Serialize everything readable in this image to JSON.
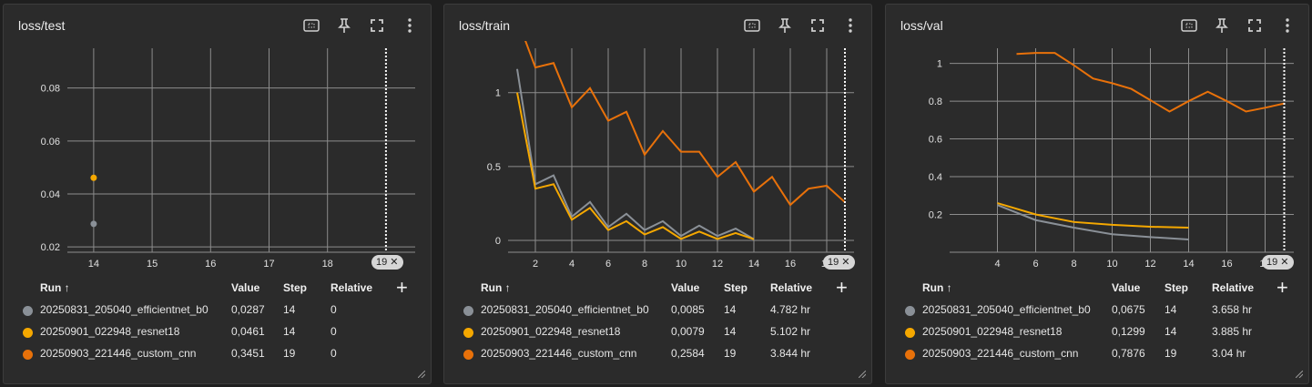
{
  "colors": {
    "efficientnet": "#8a9097",
    "resnet": "#f5a800",
    "custom_cnn": "#e8710a",
    "grid": "#8c8c8c",
    "cursor_line": "#ffffff"
  },
  "table_headers": {
    "run": "Run ↑",
    "value": "Value",
    "step": "Step",
    "relative": "Relative"
  },
  "cards": [
    {
      "title": "loss/test",
      "rows": [
        {
          "run": "20250831_205040_efficientnet_b0",
          "value": "0,0287",
          "step": "14",
          "relative": "0"
        },
        {
          "run": "20250901_022948_resnet18",
          "value": "0,0461",
          "step": "14",
          "relative": "0"
        },
        {
          "run": "20250903_221446_custom_cnn",
          "value": "0,3451",
          "step": "19",
          "relative": "0"
        }
      ]
    },
    {
      "title": "loss/train",
      "rows": [
        {
          "run": "20250831_205040_efficientnet_b0",
          "value": "0,0085",
          "step": "14",
          "relative": "4.782 hr"
        },
        {
          "run": "20250901_022948_resnet18",
          "value": "0,0079",
          "step": "14",
          "relative": "5.102 hr"
        },
        {
          "run": "20250903_221446_custom_cnn",
          "value": "0,2584",
          "step": "19",
          "relative": "3.844 hr"
        }
      ]
    },
    {
      "title": "loss/val",
      "rows": [
        {
          "run": "20250831_205040_efficientnet_b0",
          "value": "0,0675",
          "step": "14",
          "relative": "3.658 hr"
        },
        {
          "run": "20250901_022948_resnet18",
          "value": "0,1299",
          "step": "14",
          "relative": "3.885 hr"
        },
        {
          "run": "20250903_221446_custom_cnn",
          "value": "0,7876",
          "step": "19",
          "relative": "3.04 hr"
        }
      ]
    }
  ],
  "cursor_badge": "19",
  "chart_data": [
    {
      "type": "scatter",
      "title": "loss/test",
      "xlim": [
        13.55,
        19.5
      ],
      "ylim": [
        0.018,
        0.095
      ],
      "xticks": [
        "14",
        "15",
        "16",
        "17",
        "18"
      ],
      "yticks": [
        "0.02",
        "0.04",
        "0.06",
        "0.08"
      ],
      "cursor_x": 19,
      "series": [
        {
          "name": "20250831_205040_efficientnet_b0",
          "color": "#8a9097",
          "x": [
            14
          ],
          "y": [
            0.0287
          ]
        },
        {
          "name": "20250901_022948_resnet18",
          "color": "#f5a800",
          "x": [
            14
          ],
          "y": [
            0.0461
          ]
        }
      ]
    },
    {
      "type": "line",
      "title": "loss/train",
      "xlim": [
        0.5,
        19.5
      ],
      "ylim": [
        -0.08,
        1.3
      ],
      "xticks": [
        "2",
        "4",
        "6",
        "8",
        "10",
        "12",
        "14",
        "16",
        "18"
      ],
      "yticks": [
        "0",
        "0.5",
        "1"
      ],
      "cursor_x": 19,
      "series": [
        {
          "name": "20250831_205040_efficientnet_b0",
          "color": "#8a9097",
          "x": [
            1,
            2,
            3,
            4,
            5,
            6,
            7,
            8,
            9,
            10,
            11,
            12,
            13,
            14
          ],
          "y": [
            1.16,
            0.38,
            0.44,
            0.16,
            0.26,
            0.09,
            0.18,
            0.07,
            0.13,
            0.03,
            0.1,
            0.03,
            0.08,
            0.0085
          ]
        },
        {
          "name": "20250901_022948_resnet18",
          "color": "#f5a800",
          "x": [
            1,
            2,
            3,
            4,
            5,
            6,
            7,
            8,
            9,
            10,
            11,
            12,
            13,
            14
          ],
          "y": [
            1.0,
            0.35,
            0.38,
            0.14,
            0.22,
            0.07,
            0.13,
            0.04,
            0.09,
            0.01,
            0.06,
            0.01,
            0.05,
            0.0079
          ]
        },
        {
          "name": "20250903_221446_custom_cnn",
          "color": "#e8710a",
          "x": [
            1,
            2,
            3,
            4,
            5,
            6,
            7,
            8,
            9,
            10,
            11,
            12,
            13,
            14,
            15,
            16,
            17,
            18,
            19
          ],
          "y": [
            1.5,
            1.17,
            1.2,
            0.9,
            1.03,
            0.81,
            0.87,
            0.58,
            0.74,
            0.6,
            0.6,
            0.43,
            0.53,
            0.33,
            0.43,
            0.24,
            0.35,
            0.37,
            0.2584
          ]
        }
      ]
    },
    {
      "type": "line",
      "title": "loss/val",
      "xlim": [
        1.5,
        19.5
      ],
      "ylim": [
        0.0,
        1.08
      ],
      "xticks": [
        "4",
        "6",
        "8",
        "10",
        "12",
        "14",
        "16",
        "18"
      ],
      "yticks": [
        "0.2",
        "0.4",
        "0.6",
        "0.8",
        "1"
      ],
      "cursor_x": 19,
      "series": [
        {
          "name": "20250831_205040_efficientnet_b0",
          "color": "#8a9097",
          "x": [
            4,
            6,
            8,
            10,
            12,
            14
          ],
          "y": [
            0.25,
            0.17,
            0.13,
            0.095,
            0.08,
            0.0675
          ]
        },
        {
          "name": "20250901_022948_resnet18",
          "color": "#f5a800",
          "x": [
            4,
            6,
            8,
            10,
            12,
            14
          ],
          "y": [
            0.26,
            0.2,
            0.16,
            0.145,
            0.135,
            0.1299
          ]
        },
        {
          "name": "20250903_221446_custom_cnn",
          "color": "#e8710a",
          "x": [
            5,
            6,
            7,
            8,
            9,
            10,
            11,
            12,
            13,
            14,
            15,
            16,
            17,
            18,
            19
          ],
          "y": [
            1.05,
            1.055,
            1.055,
            0.99,
            0.92,
            0.895,
            0.865,
            0.805,
            0.745,
            0.8,
            0.85,
            0.8,
            0.745,
            0.765,
            0.7876
          ]
        }
      ]
    }
  ]
}
